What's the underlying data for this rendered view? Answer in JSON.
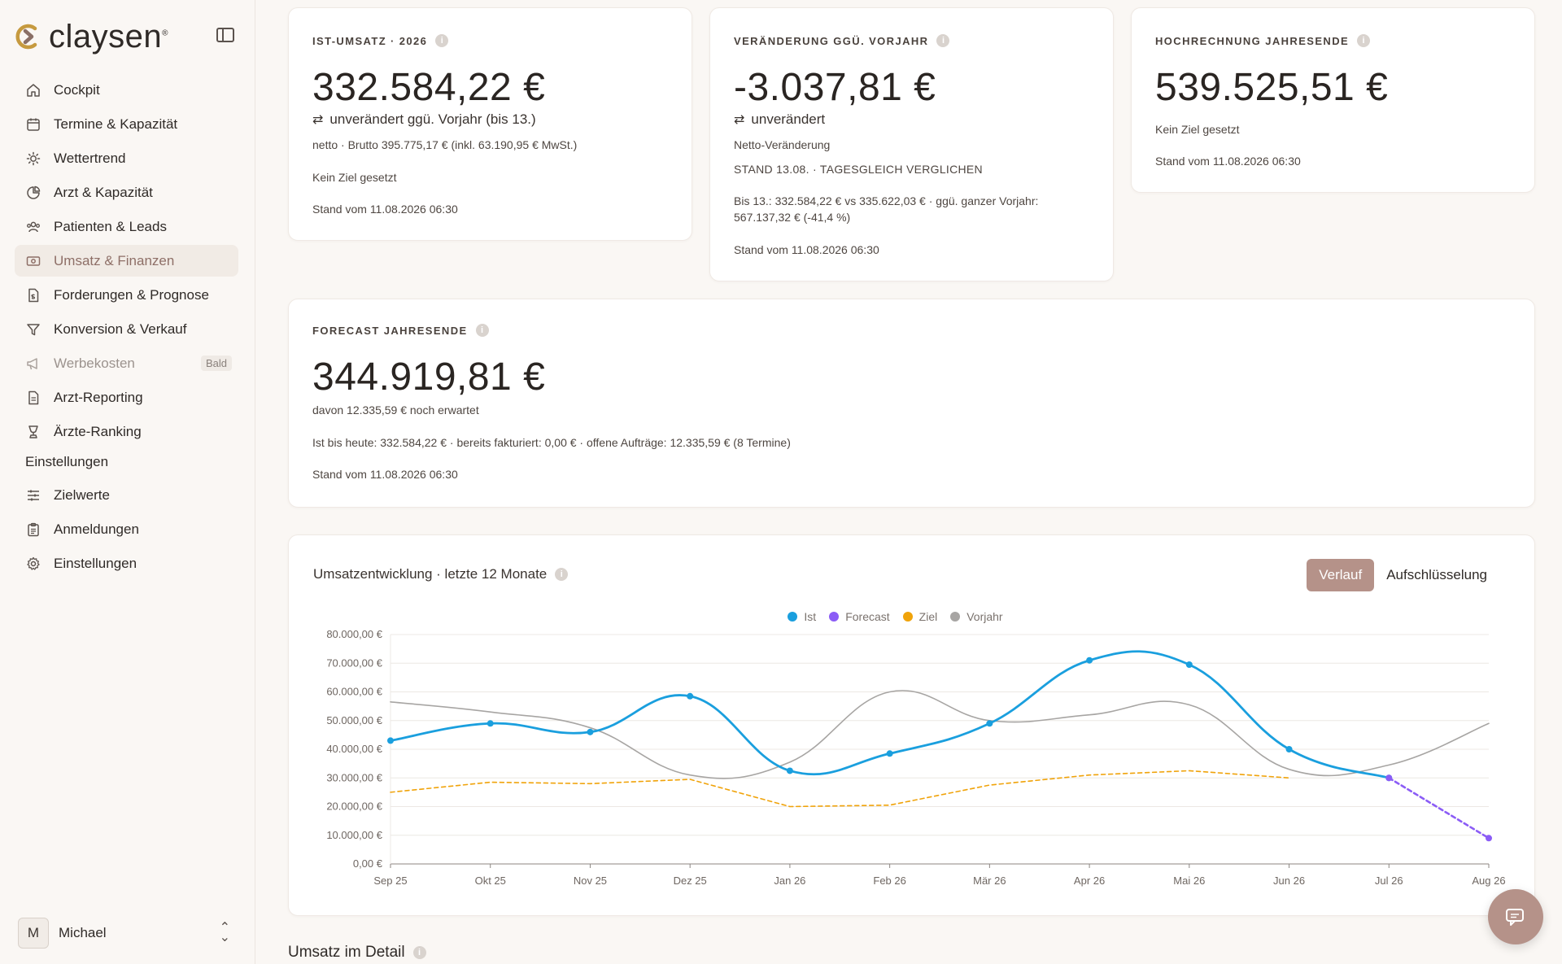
{
  "app": {
    "brand": "claysen",
    "registered": "®"
  },
  "sidebar": {
    "items": [
      {
        "label": "Cockpit",
        "icon": "home-icon"
      },
      {
        "label": "Termine & Kapazität",
        "icon": "calendar-icon"
      },
      {
        "label": "Wettertrend",
        "icon": "sun-icon"
      },
      {
        "label": "Arzt & Kapazität",
        "icon": "pie-icon"
      },
      {
        "label": "Patienten & Leads",
        "icon": "users-icon"
      },
      {
        "label": "Umsatz & Finanzen",
        "icon": "money-icon",
        "active": true
      },
      {
        "label": "Forderungen & Prognose",
        "icon": "invoice-icon"
      },
      {
        "label": "Konversion & Verkauf",
        "icon": "funnel-icon"
      },
      {
        "label": "Werbekosten",
        "icon": "megaphone-icon",
        "badge": "Bald",
        "disabled": true
      },
      {
        "label": "Arzt-Reporting",
        "icon": "document-icon"
      },
      {
        "label": "Ärzte-Ranking",
        "icon": "trophy-icon"
      }
    ],
    "section_label": "Einstellungen",
    "settings_items": [
      {
        "label": "Zielwerte",
        "icon": "sliders-icon"
      },
      {
        "label": "Anmeldungen",
        "icon": "clipboard-icon"
      },
      {
        "label": "Einstellungen",
        "icon": "gear-icon"
      }
    ],
    "user": {
      "initial": "M",
      "name": "Michael"
    }
  },
  "cards": {
    "ist": {
      "label": "IST-UMSATZ · 2026",
      "value": "332.584,22 €",
      "change": "unverändert ggü. Vorjahr (bis 13.)",
      "detail": "netto · Brutto 395.775,17 € (inkl. 63.190,95 € MwSt.)",
      "goal": "Kein Ziel gesetzt",
      "stand": "Stand vom 11.08.2026 06:30"
    },
    "change": {
      "label": "VERÄNDERUNG GGÜ. VORJAHR",
      "value": "-3.037,81 €",
      "change": "unverändert",
      "detail": "Netto-Veränderung",
      "stand_note": "STAND 13.08. · TAGESGLEICH VERGLICHEN",
      "comparison_1": "Bis 13.: 332.584,22 € vs 335.622,03 € · ggü. ganzer Vorjahr:",
      "comparison_2": "567.137,32 € (-41,4 %)",
      "stand": "Stand vom 11.08.2026 06:30"
    },
    "projection": {
      "label": "HOCHRECHNUNG JAHRESENDE",
      "value": "539.525,51 €",
      "goal": "Kein Ziel gesetzt",
      "stand": "Stand vom 11.08.2026 06:30"
    },
    "forecast": {
      "label": "FORECAST JAHRESENDE",
      "value": "344.919,81 €",
      "expected": "davon 12.335,59 € noch erwartet",
      "detail": "Ist bis heute: 332.584,22 € · bereits fakturiert: 0,00 € · offene Aufträge: 12.335,59 € (8 Termine)",
      "stand": "Stand vom 11.08.2026 06:30"
    }
  },
  "chart_card": {
    "title": "Umsatzentwicklung · letzte 12 Monate",
    "toggle": {
      "active": "Verlauf",
      "other": "Aufschlüsselung"
    }
  },
  "section_title": "Umsatz im Detail",
  "colors": {
    "ist": "#1a9fde",
    "forecast": "#8b5cf6",
    "ziel": "#f0a30a",
    "vorjahr": "#a7a5a3",
    "accent": "#b59289"
  },
  "chart_data": {
    "type": "line",
    "x": [
      "Sep 25",
      "Okt 25",
      "Nov 25",
      "Dez 25",
      "Jan 26",
      "Feb 26",
      "Mär 26",
      "Apr 26",
      "Mai 26",
      "Jun 26",
      "Jul 26",
      "Aug 26"
    ],
    "y_ticks": [
      "0,00 €",
      "10.000,00 €",
      "20.000,00 €",
      "30.000,00 €",
      "40.000,00 €",
      "50.000,00 €",
      "60.000,00 €",
      "70.000,00 €",
      "80.000,00 €"
    ],
    "ylim": [
      0,
      80000
    ],
    "legend_position": "top-center",
    "grid": true,
    "series": [
      {
        "name": "Ist",
        "values": [
          43000,
          49000,
          46000,
          58500,
          32500,
          38500,
          49000,
          71000,
          69500,
          40000,
          30000,
          null
        ],
        "style": "solid-markers"
      },
      {
        "name": "Forecast",
        "values": [
          null,
          null,
          null,
          null,
          null,
          null,
          null,
          null,
          null,
          null,
          30000,
          9000
        ],
        "style": "dashed-markers"
      },
      {
        "name": "Ziel",
        "values": [
          25000,
          28500,
          28000,
          29500,
          20000,
          20500,
          27500,
          31000,
          32500,
          30000,
          null,
          null
        ],
        "style": "dashed"
      },
      {
        "name": "Vorjahr",
        "values": [
          56500,
          53000,
          47500,
          31000,
          35500,
          60000,
          50000,
          52000,
          55500,
          33000,
          34500,
          49000
        ],
        "style": "solid-thin"
      }
    ]
  }
}
